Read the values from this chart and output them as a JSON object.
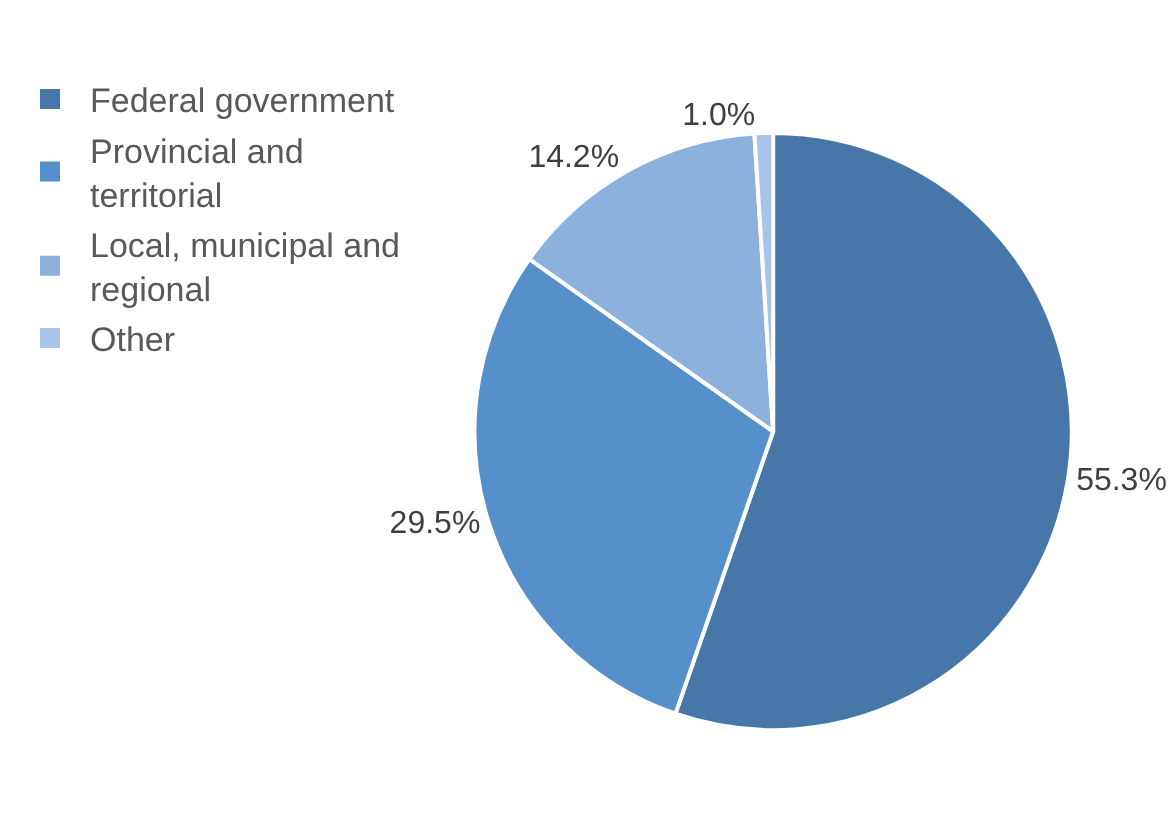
{
  "chart_data": {
    "type": "pie",
    "categories": [
      "Federal government",
      "Provincial and territorial",
      "Local, municipal and regional",
      "Other"
    ],
    "values": [
      55.3,
      29.5,
      14.2,
      1.0
    ],
    "value_labels": [
      "55.3%",
      "29.5%",
      "14.2%",
      "1.0%"
    ],
    "colors": [
      "#4677a8",
      "#5690cb",
      "#8cb1dd",
      "#a8c5e9"
    ],
    "legend": "left"
  }
}
